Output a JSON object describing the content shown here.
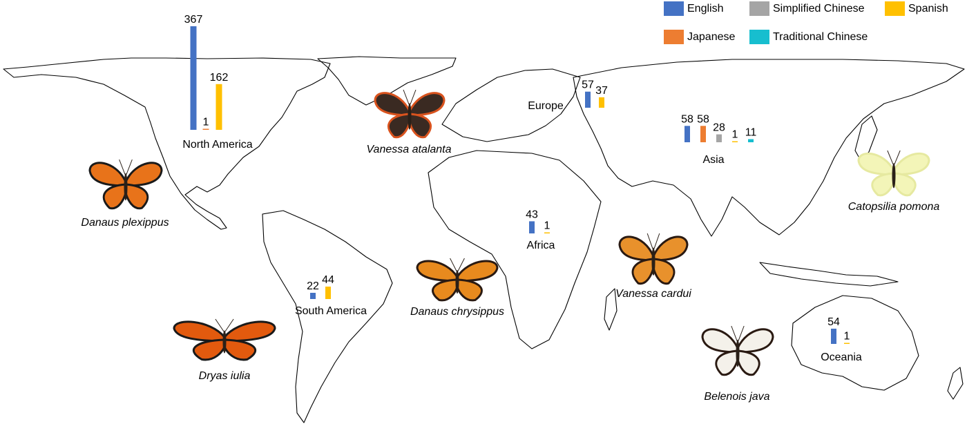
{
  "languages": [
    {
      "key": "english",
      "name": "English",
      "color": "#4472C4"
    },
    {
      "key": "simplified_chinese",
      "name": "Simplified Chinese",
      "color": "#A5A5A5"
    },
    {
      "key": "spanish",
      "name": "Spanish",
      "color": "#FFC000"
    },
    {
      "key": "japanese",
      "name": "Japanese",
      "color": "#ED7D31"
    },
    {
      "key": "traditional_chinese",
      "name": "Traditional Chinese",
      "color": "#17BECF"
    }
  ],
  "chart_data": {
    "type": "bar",
    "title": "",
    "legend": "top-right",
    "regions": [
      {
        "name": "North America",
        "values": [
          {
            "language": "English",
            "value": 367
          },
          {
            "language": "Japanese",
            "value": 1
          },
          {
            "language": "Spanish",
            "value": 162
          }
        ]
      },
      {
        "name": "Europe",
        "values": [
          {
            "language": "English",
            "value": 57
          },
          {
            "language": "Spanish",
            "value": 37
          }
        ]
      },
      {
        "name": "Asia",
        "values": [
          {
            "language": "English",
            "value": 58
          },
          {
            "language": "Japanese",
            "value": 58
          },
          {
            "language": "Simplified Chinese",
            "value": 28
          },
          {
            "language": "Spanish",
            "value": 1
          },
          {
            "language": "Traditional Chinese",
            "value": 11
          }
        ]
      },
      {
        "name": "Africa",
        "values": [
          {
            "language": "English",
            "value": 43
          },
          {
            "language": "Spanish",
            "value": 1
          }
        ]
      },
      {
        "name": "South America",
        "values": [
          {
            "language": "English",
            "value": 22
          },
          {
            "language": "Spanish",
            "value": 44
          }
        ]
      },
      {
        "name": "Oceania",
        "values": [
          {
            "language": "English",
            "value": 54
          },
          {
            "language": "Spanish",
            "value": 1
          }
        ]
      }
    ]
  },
  "species": [
    {
      "name": "Danaus plexippus",
      "wing": "#E8731A",
      "edge": "#1a1a1a"
    },
    {
      "name": "Vanessa atalanta",
      "wing": "#3a2a22",
      "edge": "#D9531E"
    },
    {
      "name": "Catopsilia pomona",
      "wing": "#F3F5B8",
      "edge": "#E6E9A0"
    },
    {
      "name": "Dryas iulia",
      "wing": "#E25A0E",
      "edge": "#1a1a1a"
    },
    {
      "name": "Danaus chrysippus",
      "wing": "#E88A1E",
      "edge": "#2a1a12"
    },
    {
      "name": "Vanessa cardui",
      "wing": "#E8912C",
      "edge": "#2a1a12"
    },
    {
      "name": "Belenois java",
      "wing": "#F4F1EA",
      "edge": "#2a1a12"
    }
  ]
}
